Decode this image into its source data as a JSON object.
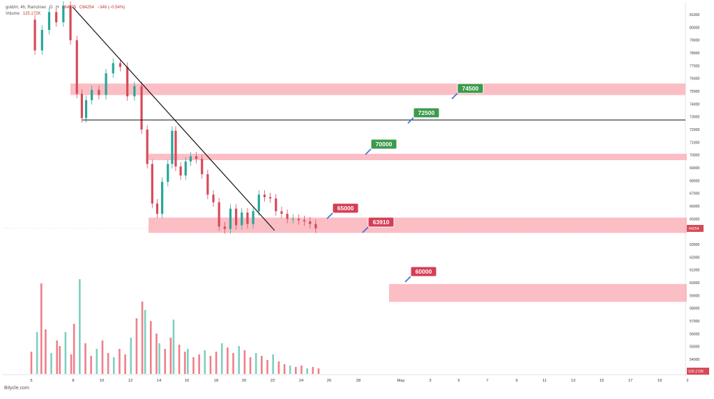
{
  "header": {
    "symbol": "gold/irr, 4h, Ramzinex",
    "ohlc_label": "O",
    "high_label": "H",
    "low_label": "L64075",
    "close_label": "C64254",
    "change": "−346 (−0.54%)",
    "volume_label": "Volume",
    "volume_value": "125.172K"
  },
  "footer": {
    "watermark": "Bitycle.com"
  },
  "colors": {
    "up": "#7fcfbf",
    "up_body": "#26a69a",
    "down": "#ef7f8a",
    "down_body": "#d64a58",
    "zone": "#f9a8b0",
    "label_green": "#3c9a4c",
    "label_red": "#d43f56"
  },
  "chart_data": {
    "type": "candlestick",
    "y_axis": {
      "range": [
        53200,
        82000
      ],
      "ticks": [
        81000,
        80000,
        79000,
        78000,
        77000,
        76000,
        75000,
        74000,
        73000,
        72000,
        71000,
        70000,
        69000,
        68000,
        67000,
        66000,
        65000,
        63000,
        62000,
        61000,
        60000,
        59000,
        58000,
        57000,
        56000,
        55000,
        54000
      ]
    },
    "x_axis": {
      "ticks": [
        "5",
        "8",
        "10",
        "12",
        "14",
        "16",
        "18",
        "20",
        "22",
        "24",
        "26",
        "28",
        "May",
        "3",
        "5",
        "7",
        "9",
        "11",
        "13",
        "15",
        "17",
        "19",
        "2"
      ]
    },
    "last_price": {
      "value": 64254,
      "label": "64254"
    },
    "volume_last": "125.172K",
    "price_series": [
      [
        5,
        80600
      ],
      [
        5.5,
        78200
      ],
      [
        6,
        79800
      ],
      [
        6.5,
        81200
      ],
      [
        7,
        80400
      ],
      [
        7.5,
        81700
      ],
      [
        8,
        79000
      ],
      [
        8.4,
        74800
      ],
      [
        8.7,
        72900
      ],
      [
        9,
        74300
      ],
      [
        9.5,
        75100
      ],
      [
        10,
        74700
      ],
      [
        10.5,
        76400
      ],
      [
        11,
        77200
      ],
      [
        11.5,
        76900
      ],
      [
        12,
        74600
      ],
      [
        12.5,
        75400
      ],
      [
        13,
        72000
      ],
      [
        13.3,
        69300
      ],
      [
        13.7,
        66200
      ],
      [
        14,
        65400
      ],
      [
        14.4,
        67900
      ],
      [
        14.8,
        69300
      ],
      [
        15,
        71900
      ],
      [
        15.3,
        69100
      ],
      [
        15.7,
        68400
      ],
      [
        16,
        69500
      ],
      [
        16.4,
        69900
      ],
      [
        16.8,
        69700
      ],
      [
        17.2,
        68500
      ],
      [
        17.6,
        66900
      ],
      [
        18,
        66300
      ],
      [
        18.4,
        64400
      ],
      [
        18.8,
        64200
      ],
      [
        19.2,
        65800
      ],
      [
        19.6,
        64500
      ],
      [
        20,
        65500
      ],
      [
        20.4,
        64600
      ],
      [
        20.8,
        65600
      ],
      [
        21.2,
        66900
      ],
      [
        21.6,
        66700
      ],
      [
        22,
        66600
      ],
      [
        22.4,
        65600
      ],
      [
        22.8,
        65400
      ],
      [
        23.2,
        65000
      ],
      [
        23.6,
        65000
      ],
      [
        24,
        64900
      ],
      [
        24.4,
        64800
      ],
      [
        24.8,
        64600
      ],
      [
        25.2,
        64254
      ]
    ],
    "volume_series": [
      [
        5,
        1.6
      ],
      [
        5.4,
        3.0
      ],
      [
        5.7,
        6.5
      ],
      [
        6,
        3.2
      ],
      [
        6.4,
        1.5
      ],
      [
        6.8,
        2.4
      ],
      [
        7,
        2.0
      ],
      [
        7.4,
        3.0
      ],
      [
        7.8,
        1.4
      ],
      [
        8,
        3.6
      ],
      [
        8.4,
        6.8
      ],
      [
        8.8,
        2.2
      ],
      [
        9.2,
        1.3
      ],
      [
        9.6,
        1.8
      ],
      [
        10,
        2.4
      ],
      [
        10.4,
        1.5
      ],
      [
        10.8,
        1.2
      ],
      [
        11.2,
        1.8
      ],
      [
        11.6,
        1.4
      ],
      [
        12,
        2.6
      ],
      [
        12.4,
        4.0
      ],
      [
        12.8,
        5.2
      ],
      [
        13,
        4.6
      ],
      [
        13.4,
        3.8
      ],
      [
        13.8,
        2.9
      ],
      [
        14,
        2.2
      ],
      [
        14.4,
        1.8
      ],
      [
        14.8,
        2.6
      ],
      [
        15,
        3.9
      ],
      [
        15.4,
        2.1
      ],
      [
        15.8,
        1.6
      ],
      [
        16,
        1.8
      ],
      [
        16.4,
        1.2
      ],
      [
        16.8,
        1.4
      ],
      [
        17.2,
        1.7
      ],
      [
        17.6,
        1.3
      ],
      [
        18,
        1.6
      ],
      [
        18.4,
        2.2
      ],
      [
        18.8,
        1.9
      ],
      [
        19.2,
        1.5
      ],
      [
        19.6,
        2.0
      ],
      [
        20,
        1.7
      ],
      [
        20.4,
        1.2
      ],
      [
        20.8,
        1.5
      ],
      [
        21.2,
        1.3
      ],
      [
        21.6,
        1.0
      ],
      [
        22,
        1.4
      ],
      [
        22.4,
        0.9
      ],
      [
        22.8,
        0.7
      ],
      [
        23.2,
        0.6
      ],
      [
        23.6,
        0.5
      ],
      [
        24,
        0.6
      ],
      [
        24.4,
        0.4
      ],
      [
        24.8,
        0.5
      ],
      [
        25.2,
        0.4
      ]
    ],
    "annotations": [
      {
        "label": "74500",
        "price": 74500,
        "style": "green"
      },
      {
        "label": "72500",
        "price": 72500,
        "style": "green"
      },
      {
        "label": "70000",
        "price": 70000,
        "style": "green"
      },
      {
        "label": "65000",
        "price": 65000,
        "style": "red"
      },
      {
        "label": "63910",
        "price": 63910,
        "style": "red"
      },
      {
        "label": "60000",
        "price": 60000,
        "style": "red"
      }
    ],
    "zones": [
      {
        "from": 74700,
        "to": 75600
      },
      {
        "from": 69600,
        "to": 70100
      },
      {
        "from": 63900,
        "to": 65100
      },
      {
        "from": 58500,
        "to": 59900
      }
    ],
    "horizontal_line": 72750,
    "trendline": {
      "from": [
        7.9,
        81600
      ],
      "to": [
        22.1,
        64100
      ]
    }
  }
}
